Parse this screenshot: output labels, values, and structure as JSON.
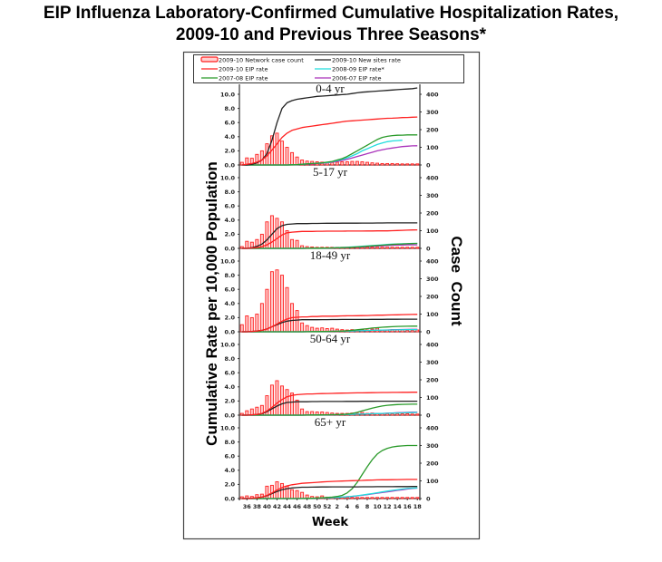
{
  "title_line1": "EIP Influenza Laboratory-Confirmed Cumulative Hospitalization Rates,",
  "title_line2": "2009-10 and Previous Three Seasons*",
  "chart_data": {
    "type": "line",
    "title": "EIP Influenza Laboratory-Confirmed Cumulative Hospitalization Rates, 2009-10 and Previous Three Seasons*",
    "xlabel": "Week",
    "ylabel_left": "Cumulative Rate per 10,000 Population",
    "ylabel_right": "Case  Count",
    "ylim_left": [
      0,
      10
    ],
    "ylim_right": [
      0,
      400
    ],
    "y_ticks_left": [
      "0.0",
      "2.0",
      "4.0",
      "6.0",
      "8.0",
      "10.0"
    ],
    "y_ticks_right": [
      "0",
      "100",
      "200",
      "300",
      "400"
    ],
    "weeks": [
      35,
      36,
      37,
      38,
      39,
      40,
      41,
      42,
      43,
      44,
      45,
      46,
      47,
      48,
      49,
      50,
      51,
      52,
      1,
      2,
      3,
      4,
      5,
      6,
      7,
      8,
      9,
      10,
      11,
      12,
      13,
      14,
      15,
      16,
      17,
      18
    ],
    "x_tick_labels": [
      "36",
      "38",
      "40",
      "42",
      "44",
      "46",
      "48",
      "50",
      "52",
      "2",
      "4",
      "6",
      "8",
      "10",
      "12",
      "14",
      "16",
      "18"
    ],
    "legend": [
      {
        "name": "2009-10 Network case count",
        "color": "#ff2020",
        "style": "bar"
      },
      {
        "name": "2009-10 New sites rate",
        "color": "#222222",
        "style": "line"
      },
      {
        "name": "2009-10 EIP rate",
        "color": "#ff2020",
        "style": "line"
      },
      {
        "name": "2008-09 EIP rate*",
        "color": "#22dddd",
        "style": "line"
      },
      {
        "name": "2007-08 EIP rate",
        "color": "#2a9a2a",
        "style": "line"
      },
      {
        "name": "2006-07 EIP rate",
        "color": "#aa33bb",
        "style": "line"
      }
    ],
    "panels": [
      {
        "label": "0-4 yr",
        "case_count": [
          15,
          40,
          38,
          60,
          80,
          120,
          165,
          180,
          135,
          100,
          70,
          45,
          28,
          22,
          20,
          18,
          16,
          15,
          14,
          16,
          18,
          18,
          20,
          20,
          18,
          15,
          12,
          10,
          8,
          8,
          8,
          7,
          6,
          6,
          5,
          5
        ],
        "new_sites_rate": [
          0,
          0,
          0.1,
          0.3,
          0.7,
          1.6,
          3.5,
          6.0,
          8.0,
          8.8,
          9.1,
          9.3,
          9.4,
          9.5,
          9.6,
          9.7,
          9.75,
          9.8,
          9.85,
          9.9,
          9.95,
          10.0,
          10.1,
          10.2,
          10.3,
          10.35,
          10.4,
          10.45,
          10.5,
          10.55,
          10.6,
          10.65,
          10.7,
          10.75,
          10.8,
          10.9
        ],
        "eip_2009_10": [
          0,
          0.1,
          0.2,
          0.4,
          0.7,
          1.3,
          2.1,
          3.0,
          3.9,
          4.5,
          4.9,
          5.1,
          5.3,
          5.4,
          5.5,
          5.6,
          5.7,
          5.8,
          5.9,
          6.0,
          6.1,
          6.2,
          6.25,
          6.3,
          6.35,
          6.4,
          6.45,
          6.5,
          6.55,
          6.6,
          6.62,
          6.65,
          6.7,
          6.72,
          6.75,
          6.78
        ],
        "eip_2008_09": [
          0,
          0,
          0,
          0,
          0,
          0,
          0,
          0,
          0,
          0,
          0.02,
          0.05,
          0.1,
          0.15,
          0.2,
          0.25,
          0.3,
          0.35,
          0.45,
          0.6,
          0.8,
          1.0,
          1.3,
          1.6,
          2.0,
          2.3,
          2.6,
          2.9,
          3.1,
          3.3,
          3.4,
          3.45,
          3.5,
          null,
          null,
          null
        ],
        "eip_2007_08": [
          0,
          0,
          0,
          0,
          0,
          0,
          0,
          0,
          0,
          0,
          0.02,
          0.05,
          0.1,
          0.15,
          0.2,
          0.25,
          0.3,
          0.4,
          0.5,
          0.7,
          0.9,
          1.2,
          1.6,
          2.0,
          2.4,
          2.8,
          3.2,
          3.6,
          3.9,
          4.05,
          4.15,
          4.2,
          4.22,
          4.25,
          4.25,
          4.25
        ],
        "eip_2006_07": [
          0,
          0,
          0,
          0,
          0,
          0,
          0,
          0,
          0,
          0,
          0.02,
          0.05,
          0.1,
          0.12,
          0.15,
          0.2,
          0.25,
          0.3,
          0.4,
          0.5,
          0.65,
          0.8,
          1.0,
          1.2,
          1.4,
          1.6,
          1.8,
          2.0,
          2.15,
          2.3,
          2.4,
          2.5,
          2.6,
          2.65,
          2.7,
          2.72
        ]
      },
      {
        "label": "5-17 yr",
        "case_count": [
          10,
          40,
          35,
          50,
          80,
          150,
          185,
          170,
          150,
          100,
          50,
          45,
          15,
          10,
          8,
          6,
          5,
          4,
          3,
          3,
          3,
          3,
          3,
          4,
          4,
          4,
          4,
          5,
          5,
          5,
          5,
          5,
          5,
          5,
          5,
          5
        ],
        "new_sites_rate": [
          0,
          0,
          0.1,
          0.3,
          0.6,
          1.2,
          2.0,
          2.8,
          3.2,
          3.4,
          3.45,
          3.5,
          3.5,
          3.5,
          3.52,
          3.53,
          3.54,
          3.55,
          3.55,
          3.55,
          3.56,
          3.56,
          3.57,
          3.57,
          3.58,
          3.58,
          3.58,
          3.59,
          3.59,
          3.6,
          3.6,
          3.6,
          3.6,
          3.6,
          3.6,
          3.6
        ],
        "eip_2009_10": [
          0,
          0,
          0.05,
          0.1,
          0.25,
          0.5,
          0.9,
          1.4,
          1.9,
          2.2,
          2.3,
          2.35,
          2.4,
          2.4,
          2.4,
          2.42,
          2.42,
          2.43,
          2.43,
          2.44,
          2.44,
          2.45,
          2.45,
          2.45,
          2.45,
          2.46,
          2.46,
          2.47,
          2.47,
          2.48,
          2.5,
          2.52,
          2.55,
          2.58,
          2.6,
          2.62
        ],
        "eip_2008_09": [
          0,
          0,
          0,
          0,
          0,
          0,
          0,
          0,
          0,
          0,
          0,
          0,
          0,
          0.01,
          0.02,
          0.03,
          0.04,
          0.05,
          0.07,
          0.1,
          0.13,
          0.16,
          0.2,
          0.25,
          0.3,
          0.35,
          0.4,
          0.45,
          0.5,
          0.55,
          0.6,
          0.62,
          0.65,
          0.67,
          0.7,
          0.7
        ],
        "eip_2007_08": [
          0,
          0,
          0,
          0,
          0,
          0,
          0,
          0,
          0,
          0,
          0,
          0,
          0,
          0.01,
          0.02,
          0.03,
          0.04,
          0.05,
          0.06,
          0.08,
          0.1,
          0.13,
          0.16,
          0.2,
          0.25,
          0.3,
          0.35,
          0.4,
          0.45,
          0.5,
          0.55,
          0.6,
          0.62,
          0.65,
          0.68,
          0.7
        ],
        "eip_2006_07": [
          0,
          0,
          0,
          0,
          0,
          0,
          0,
          0,
          0,
          0,
          0,
          0,
          0,
          0.01,
          0.02,
          0.03,
          0.04,
          0.05,
          0.06,
          0.07,
          0.09,
          0.11,
          0.14,
          0.17,
          0.2,
          0.24,
          0.28,
          0.32,
          0.36,
          0.4,
          0.43,
          0.46,
          0.48,
          0.5,
          0.5,
          0.5
        ]
      },
      {
        "label": "18-49 yr",
        "case_count": [
          40,
          90,
          80,
          100,
          160,
          240,
          340,
          350,
          320,
          250,
          160,
          120,
          50,
          35,
          25,
          20,
          22,
          18,
          20,
          15,
          12,
          10,
          12,
          10,
          12,
          10,
          15,
          20,
          10,
          10,
          12,
          10,
          10,
          8,
          8,
          10
        ],
        "new_sites_rate": [
          0,
          0,
          0.05,
          0.1,
          0.2,
          0.4,
          0.7,
          1.0,
          1.3,
          1.5,
          1.6,
          1.65,
          1.7,
          1.7,
          1.7,
          1.7,
          1.72,
          1.72,
          1.73,
          1.73,
          1.74,
          1.74,
          1.74,
          1.75,
          1.75,
          1.75,
          1.76,
          1.76,
          1.76,
          1.77,
          1.77,
          1.77,
          1.78,
          1.78,
          1.78,
          1.78
        ],
        "eip_2009_10": [
          0,
          0,
          0.05,
          0.1,
          0.2,
          0.4,
          0.7,
          1.1,
          1.5,
          1.8,
          2.0,
          2.05,
          2.1,
          2.1,
          2.15,
          2.15,
          2.2,
          2.2,
          2.2,
          2.22,
          2.24,
          2.25,
          2.26,
          2.27,
          2.28,
          2.3,
          2.32,
          2.34,
          2.35,
          2.37,
          2.38,
          2.4,
          2.42,
          2.44,
          2.45,
          2.46
        ],
        "eip_2008_09": [
          0,
          0,
          0,
          0,
          0,
          0,
          0,
          0,
          0,
          0,
          0,
          0,
          0,
          0.01,
          0.02,
          0.03,
          0.04,
          0.05,
          0.06,
          0.07,
          0.08,
          0.1,
          0.12,
          0.14,
          0.16,
          0.18,
          0.2,
          0.22,
          0.24,
          0.25,
          0.26,
          0.27,
          0.28,
          0.29,
          0.3,
          0.3
        ],
        "eip_2007_08": [
          0,
          0,
          0,
          0,
          0,
          0,
          0,
          0,
          0,
          0,
          0,
          0,
          0,
          0.01,
          0.02,
          0.03,
          0.04,
          0.05,
          0.06,
          0.08,
          0.1,
          0.14,
          0.2,
          0.28,
          0.36,
          0.44,
          0.52,
          0.58,
          0.64,
          0.68,
          0.72,
          0.75,
          0.77,
          0.78,
          0.79,
          0.8
        ],
        "eip_2006_07": [
          0,
          0,
          0,
          0,
          0,
          0,
          0,
          0,
          0,
          0,
          0,
          0,
          0,
          0.01,
          0.02,
          0.03,
          0.04,
          0.05,
          0.06,
          0.07,
          0.08,
          0.1,
          0.12,
          0.14,
          0.16,
          0.18,
          0.2,
          0.22,
          0.24,
          0.26,
          0.28,
          0.3,
          0.32,
          0.33,
          0.34,
          0.35
        ]
      },
      {
        "label": "50-64 yr",
        "case_count": [
          10,
          25,
          35,
          45,
          55,
          110,
          170,
          195,
          165,
          145,
          125,
          85,
          35,
          20,
          20,
          18,
          18,
          15,
          12,
          10,
          10,
          10,
          12,
          10,
          15,
          10,
          12,
          10,
          8,
          8,
          8,
          8,
          8,
          8,
          6,
          6
        ],
        "new_sites_rate": [
          0,
          0,
          0.05,
          0.1,
          0.2,
          0.5,
          0.9,
          1.3,
          1.6,
          1.8,
          1.85,
          1.9,
          1.9,
          1.9,
          1.92,
          1.92,
          1.93,
          1.93,
          1.94,
          1.94,
          1.94,
          1.95,
          1.95,
          1.95,
          1.96,
          1.96,
          1.96,
          1.97,
          1.97,
          1.97,
          1.98,
          1.98,
          1.98,
          1.98,
          1.98,
          1.98
        ],
        "eip_2009_10": [
          0,
          0,
          0.05,
          0.1,
          0.25,
          0.6,
          1.1,
          1.7,
          2.2,
          2.6,
          2.8,
          2.9,
          2.95,
          3.0,
          3.0,
          3.02,
          3.05,
          3.07,
          3.08,
          3.1,
          3.12,
          3.13,
          3.14,
          3.15,
          3.16,
          3.17,
          3.18,
          3.19,
          3.2,
          3.21,
          3.22,
          3.22,
          3.23,
          3.23,
          3.24,
          3.24
        ],
        "eip_2008_09": [
          0,
          0,
          0,
          0,
          0,
          0,
          0,
          0,
          0,
          0,
          0,
          0,
          0,
          0.01,
          0.02,
          0.03,
          0.04,
          0.05,
          0.06,
          0.07,
          0.08,
          0.1,
          0.12,
          0.14,
          0.16,
          0.18,
          0.2,
          0.22,
          0.24,
          0.26,
          0.28,
          0.3,
          0.32,
          0.34,
          0.36,
          0.38
        ],
        "eip_2007_08": [
          0,
          0,
          0,
          0,
          0,
          0,
          0,
          0,
          0,
          0,
          0,
          0,
          0,
          0.01,
          0.02,
          0.03,
          0.04,
          0.05,
          0.06,
          0.08,
          0.1,
          0.15,
          0.25,
          0.4,
          0.6,
          0.8,
          1.0,
          1.15,
          1.3,
          1.4,
          1.45,
          1.5,
          1.52,
          1.54,
          1.55,
          1.55
        ],
        "eip_2006_07": [
          0,
          0,
          0,
          0,
          0,
          0,
          0,
          0,
          0,
          0,
          0,
          0,
          0,
          0.01,
          0.02,
          0.03,
          0.04,
          0.05,
          0.06,
          0.07,
          0.08,
          0.1,
          0.12,
          0.14,
          0.16,
          0.18,
          0.2,
          0.22,
          0.25,
          0.28,
          0.31,
          0.34,
          0.37,
          0.4,
          0.42,
          0.44
        ]
      },
      {
        "label": "65+ yr",
        "case_count": [
          10,
          15,
          12,
          22,
          25,
          70,
          75,
          95,
          85,
          70,
          50,
          45,
          35,
          20,
          12,
          10,
          15,
          8,
          6,
          6,
          6,
          6,
          5,
          5,
          4,
          4,
          4,
          4,
          4,
          4,
          4,
          4,
          4,
          4,
          4,
          4
        ],
        "new_sites_rate": [
          0,
          0,
          0.05,
          0.1,
          0.2,
          0.4,
          0.7,
          1.0,
          1.25,
          1.4,
          1.5,
          1.55,
          1.6,
          1.6,
          1.62,
          1.63,
          1.64,
          1.64,
          1.65,
          1.65,
          1.65,
          1.66,
          1.66,
          1.66,
          1.67,
          1.67,
          1.67,
          1.68,
          1.68,
          1.68,
          1.68,
          1.69,
          1.69,
          1.69,
          1.7,
          1.7
        ],
        "eip_2009_10": [
          0,
          0,
          0.05,
          0.1,
          0.2,
          0.45,
          0.8,
          1.2,
          1.55,
          1.8,
          1.95,
          2.05,
          2.15,
          2.2,
          2.25,
          2.3,
          2.35,
          2.38,
          2.42,
          2.45,
          2.48,
          2.5,
          2.52,
          2.55,
          2.57,
          2.6,
          2.62,
          2.64,
          2.65,
          2.66,
          2.67,
          2.68,
          2.69,
          2.7,
          2.7,
          2.7
        ],
        "eip_2008_09": [
          0,
          0,
          0,
          0,
          0,
          0,
          0,
          0,
          0,
          0,
          0,
          0,
          0.01,
          0.02,
          0.04,
          0.06,
          0.08,
          0.1,
          0.13,
          0.16,
          0.2,
          0.25,
          0.32,
          0.4,
          0.5,
          0.6,
          0.7,
          0.82,
          0.94,
          1.05,
          1.15,
          1.25,
          1.35,
          1.42,
          1.48,
          1.5
        ],
        "eip_2007_08": [
          0,
          0,
          0,
          0,
          0,
          0,
          0,
          0,
          0,
          0,
          0,
          0,
          0.01,
          0.02,
          0.04,
          0.06,
          0.1,
          0.15,
          0.2,
          0.3,
          0.45,
          0.8,
          1.4,
          2.3,
          3.4,
          4.5,
          5.5,
          6.3,
          6.8,
          7.1,
          7.3,
          7.4,
          7.45,
          7.5,
          7.5,
          7.5
        ],
        "eip_2006_07": [
          0,
          0,
          0,
          0,
          0,
          0,
          0,
          0,
          0,
          0,
          0,
          0,
          0.01,
          0.02,
          0.03,
          0.05,
          0.07,
          0.1,
          0.13,
          0.16,
          0.2,
          0.25,
          0.3,
          0.38,
          0.46,
          0.55,
          0.65,
          0.75,
          0.85,
          0.95,
          1.05,
          1.15,
          1.25,
          1.35,
          1.42,
          1.48
        ]
      }
    ]
  }
}
